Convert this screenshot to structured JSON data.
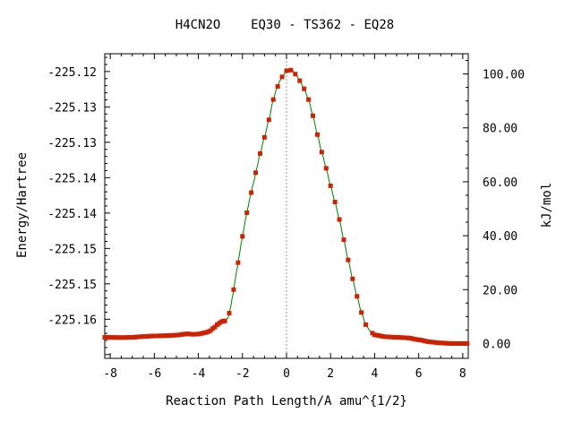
{
  "chart_data": {
    "type": "line",
    "title": "H4CN2O    EQ30 - TS362 - EQ28",
    "xlabel": "Reaction Path Length/A amu^{1/2}",
    "ylabel": "Energy/Hartree",
    "y2label": "kJ/mol",
    "xlim": [
      -8.25,
      8.25
    ],
    "ylim_kjmol": [
      -5.5,
      107.5
    ],
    "x_ticks": [
      "-8",
      "-6",
      "-4",
      "-2",
      "0",
      "2",
      "4",
      "6",
      "8"
    ],
    "y_ticks_left": [
      "-225.12",
      "-225.13",
      "-225.13",
      "-225.14",
      "-225.14",
      "-225.15",
      "-225.15",
      "-225.16"
    ],
    "y_ticks_right": [
      "100.00",
      "80.00",
      "60.00",
      "40.00",
      "20.00",
      "0.00"
    ],
    "ts_marker_x": 0,
    "grid": false,
    "legend": "none",
    "series": [
      {
        "color": "#008000",
        "marker_color": "#cc2200",
        "points": [
          [
            -8.25,
            2.3
          ],
          [
            -7.5,
            2.2
          ],
          [
            -7.0,
            2.3
          ],
          [
            -6.5,
            2.6
          ],
          [
            -6.0,
            2.8
          ],
          [
            -5.5,
            2.9
          ],
          [
            -5.0,
            3.1
          ],
          [
            -4.5,
            3.6
          ],
          [
            -4.25,
            3.4
          ],
          [
            -4.0,
            3.5
          ],
          [
            -3.7,
            4.0
          ],
          [
            -3.5,
            4.5
          ],
          [
            -3.3,
            5.8
          ],
          [
            -3.1,
            7.3
          ],
          [
            -2.95,
            8.1
          ],
          [
            -2.8,
            8.4
          ],
          [
            -2.65,
            9.5
          ],
          [
            -2.55,
            13.0
          ],
          [
            -2.45,
            17.5
          ],
          [
            -2.35,
            22.5
          ],
          [
            -2.25,
            27.5
          ],
          [
            -2.15,
            32.5
          ],
          [
            -2.05,
            37.5
          ],
          [
            -1.95,
            42.0
          ],
          [
            -1.85,
            46.5
          ],
          [
            -1.75,
            50.5
          ],
          [
            -1.65,
            54.5
          ],
          [
            -1.5,
            59.5
          ],
          [
            -1.35,
            65.0
          ],
          [
            -1.2,
            70.5
          ],
          [
            -1.0,
            76.5
          ],
          [
            -0.8,
            83.0
          ],
          [
            -0.6,
            90.5
          ],
          [
            -0.45,
            94.5
          ],
          [
            -0.3,
            97.5
          ],
          [
            -0.15,
            99.5
          ],
          [
            0.0,
            101.2
          ],
          [
            0.15,
            101.6
          ],
          [
            0.3,
            101.0
          ],
          [
            0.45,
            99.5
          ],
          [
            0.6,
            97.5
          ],
          [
            0.8,
            94.5
          ],
          [
            1.0,
            90.5
          ],
          [
            1.2,
            84.5
          ],
          [
            1.4,
            77.5
          ],
          [
            1.6,
            71.0
          ],
          [
            1.8,
            65.0
          ],
          [
            2.0,
            58.5
          ],
          [
            2.2,
            52.5
          ],
          [
            2.4,
            46.0
          ],
          [
            2.6,
            38.5
          ],
          [
            2.8,
            31.0
          ],
          [
            3.0,
            24.0
          ],
          [
            3.2,
            17.5
          ],
          [
            3.4,
            11.5
          ],
          [
            3.6,
            7.0
          ],
          [
            3.8,
            4.5
          ],
          [
            4.0,
            3.2
          ],
          [
            4.5,
            2.5
          ],
          [
            5.0,
            2.3
          ],
          [
            5.5,
            2.1
          ],
          [
            6.0,
            1.4
          ],
          [
            6.5,
            0.6
          ],
          [
            7.0,
            0.2
          ],
          [
            7.5,
            0.0
          ],
          [
            8.25,
            0.0
          ]
        ]
      }
    ]
  }
}
